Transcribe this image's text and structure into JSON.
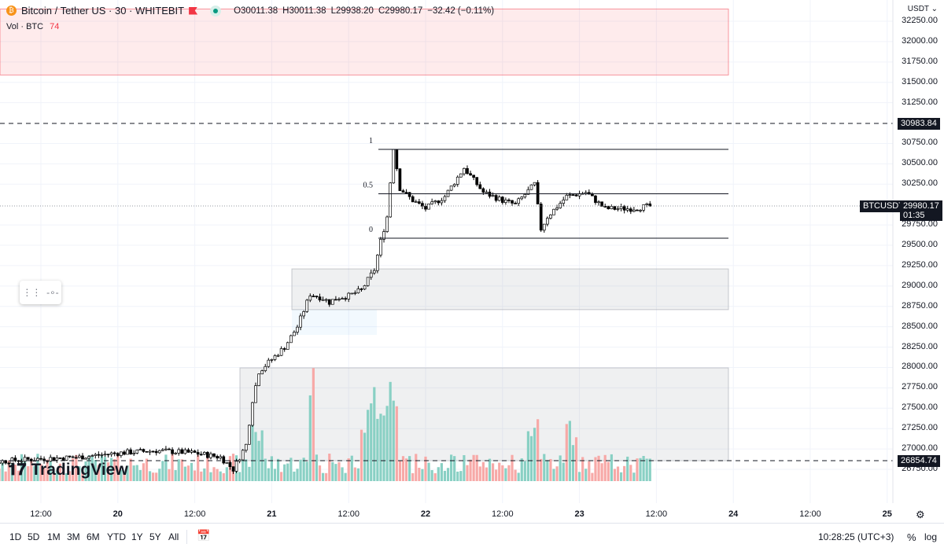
{
  "header": {
    "symbol": "Bitcoin / Tether US · 30 · WHITEBIT",
    "open": "O30011.38",
    "high": "H30011.38",
    "low": "L29938.20",
    "close": "C29980.17",
    "change": "−32.42 (−0.11%)",
    "volume_label": "Vol · BTC",
    "volume_value": "74"
  },
  "price_axis": {
    "currency": "USDT ⌄",
    "ticks": [
      "32250.00",
      "32000.00",
      "31750.00",
      "31500.00",
      "31250.00",
      "30750.00",
      "30500.00",
      "30250.00",
      "29750.00",
      "29500.00",
      "29250.00",
      "29000.00",
      "28750.00",
      "28500.00",
      "28250.00",
      "28000.00",
      "27750.00",
      "27500.00",
      "27250.00",
      "27000.00",
      "26750.00"
    ],
    "tick_values": [
      32250,
      32000,
      31750,
      31500,
      31250,
      30750,
      30500,
      30250,
      29750,
      29500,
      29250,
      29000,
      28750,
      28500,
      28250,
      28000,
      27750,
      27500,
      27250,
      27000,
      26750
    ]
  },
  "time_axis": {
    "ticks": [
      "12:00",
      "20",
      "12:00",
      "21",
      "12:00",
      "22",
      "12:00",
      "23",
      "12:00",
      "24",
      "12:00",
      "25"
    ],
    "tick_hours": [
      12,
      24,
      36,
      48,
      60,
      72,
      84,
      96,
      108,
      120,
      132,
      144
    ]
  },
  "price_labels": {
    "level_high": "30983.84",
    "level_low": "26854.74",
    "symbol": "BTCUSDT",
    "last": "29980.17",
    "countdown": "01:35"
  },
  "fib": {
    "labels": [
      "1",
      "0.5",
      "0"
    ],
    "levels": [
      30677,
      30132,
      29587
    ]
  },
  "zones": [
    {
      "top": 32400,
      "bottom": 31590,
      "color": "#f23645"
    },
    {
      "top": 29210,
      "bottom": 28710,
      "color": "#9598a1"
    },
    {
      "top": 27995,
      "bottom": 26856,
      "color": "#9598a1"
    }
  ],
  "chart_data": {
    "type": "candlestick",
    "interval": "30",
    "up_color": "#ffffff",
    "down_color": "#000000",
    "vol_up": "#89d0c4",
    "vol_down": "#f7a9a7",
    "price_path_hours": [
      0,
      6,
      12,
      18,
      24,
      30,
      36,
      40,
      42,
      44,
      45,
      46,
      48,
      50,
      52,
      54,
      56,
      57,
      58,
      60,
      62,
      64,
      65,
      66,
      67,
      68,
      70,
      72,
      75,
      78,
      81,
      84,
      86,
      89,
      90,
      91,
      94,
      97,
      100,
      104,
      107
    ],
    "price_path": [
      26800,
      26850,
      26880,
      26900,
      26950,
      26980,
      26950,
      26900,
      26750,
      27050,
      27600,
      27950,
      28100,
      28250,
      28500,
      28900,
      28850,
      28800,
      28850,
      28880,
      28950,
      29200,
      29550,
      29850,
      30700,
      30200,
      30050,
      29950,
      30100,
      30450,
      30150,
      30050,
      30000,
      30250,
      29700,
      29850,
      30100,
      30150,
      29950,
      29950,
      29980
    ]
  },
  "bottom": {
    "ranges": [
      "1D",
      "5D",
      "1M",
      "3M",
      "6M",
      "YTD",
      "1Y",
      "5Y",
      "All"
    ],
    "clock": "10:28:25 (UTC+3)",
    "percent": "%",
    "log": "log"
  },
  "branding": {
    "name": "TradingView"
  }
}
